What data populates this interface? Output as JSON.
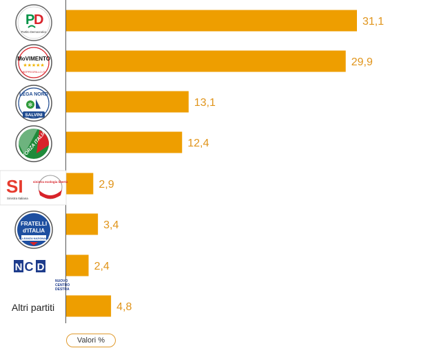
{
  "chart_data": {
    "type": "bar",
    "orientation": "horizontal",
    "categories": [
      "Partito Democratico",
      "Movimento 5 Stelle",
      "Lega Nord Salvini",
      "Forza Italia",
      "Sinistra Italiana / Sinistra Ecologia Libertà",
      "Fratelli d'Italia",
      "NCD Nuovo Centro Destra",
      "Altri partiti"
    ],
    "category_logos": [
      "pd-logo",
      "m5s-logo",
      "lega-logo",
      "forza-italia-logo",
      "si-sel-logo",
      "fdi-logo",
      "ncd-logo",
      ""
    ],
    "values": [
      31.1,
      29.9,
      13.1,
      12.4,
      2.9,
      3.4,
      2.4,
      4.8
    ],
    "value_labels": [
      "31,1",
      "29,9",
      "13,1",
      "12,4",
      "2,9",
      "3,4",
      "2,4",
      "4,8"
    ],
    "xlim": [
      0,
      31.1
    ],
    "bar_color": "#ee9e00",
    "label_color": "#e0941a",
    "grid": false,
    "legend_label": "Valori %",
    "legend_placement": "bottom-left"
  },
  "logos": {
    "pd": {
      "initials": "PD",
      "caption": "Partito Democratico",
      "red": "#d8232a",
      "green": "#009246"
    },
    "m5s": {
      "word": "MoVIMENTO",
      "stars": "★★★★★",
      "caption": "BEPPEGRILLO.IT"
    },
    "lega": {
      "top": "LEGA NORD",
      "bottom": "SALVINI"
    },
    "fi": {
      "text": "FORZA ITALIA"
    },
    "si": {
      "mark": "SI",
      "caption": "Sinistra Italiana",
      "sel": "sinistra ecologia libertà"
    },
    "fdi": {
      "line1": "FRATELLI",
      "line2": "d'ITALIA",
      "band": "ALLEANZA NAZIONALE"
    },
    "ncd": {
      "mark": "NCD",
      "line1": "NUOVO",
      "line2": "CENTRO",
      "line3": "DESTRA"
    },
    "altri": {
      "text": "Altri partiti"
    }
  }
}
